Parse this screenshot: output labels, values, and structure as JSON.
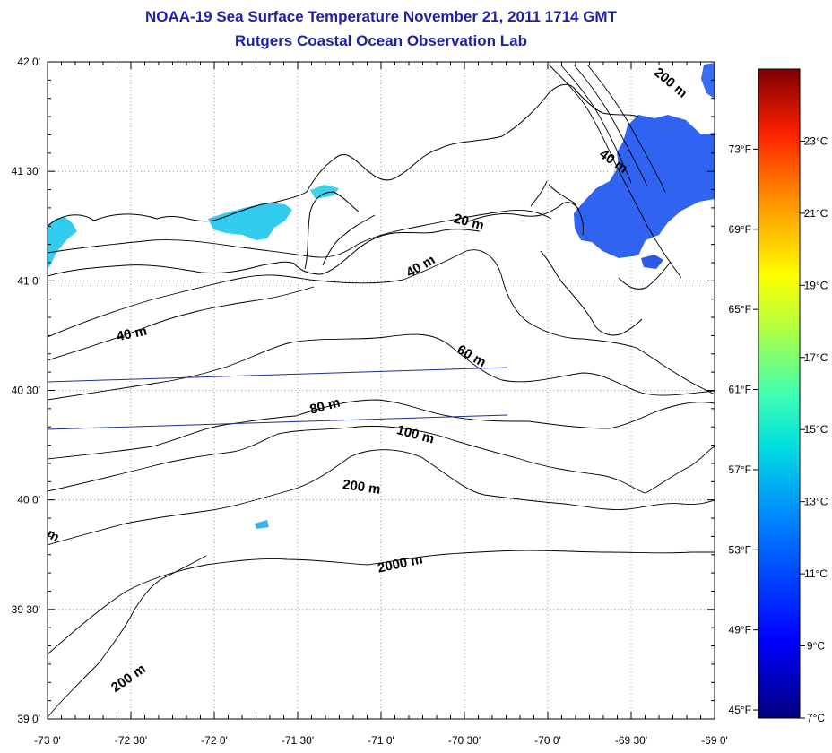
{
  "title": "NOAA-19 Sea Surface Temperature November 21, 2011 1714 GMT",
  "subtitle": "Rutgers Coastal Ocean Observation Lab",
  "map": {
    "lon_range": [
      -73.0,
      -69.0
    ],
    "lat_range": [
      39.0,
      42.0
    ],
    "x_ticks": [
      {
        "value": -73.0,
        "label": "-73 0'"
      },
      {
        "value": -72.5,
        "label": "-72 30'"
      },
      {
        "value": -72.0,
        "label": "-72 0'"
      },
      {
        "value": -71.5,
        "label": "-71 30'"
      },
      {
        "value": -71.0,
        "label": "-71 0'"
      },
      {
        "value": -70.5,
        "label": "-70 30'"
      },
      {
        "value": -70.0,
        "label": "-70 0'"
      },
      {
        "value": -69.5,
        "label": "-69 30'"
      },
      {
        "value": -69.0,
        "label": "-69 0'"
      }
    ],
    "y_ticks": [
      {
        "value": 42.0,
        "label": "42 0'"
      },
      {
        "value": 41.5,
        "label": "41 30'"
      },
      {
        "value": 41.0,
        "label": "41 0'"
      },
      {
        "value": 40.5,
        "label": "40 30'"
      },
      {
        "value": 40.0,
        "label": "40 0'"
      },
      {
        "value": 39.5,
        "label": "39 30'"
      },
      {
        "value": 39.0,
        "label": "39 0'"
      }
    ],
    "grid": true,
    "contour_labels": [
      {
        "text": "200 m",
        "lon": -69.28,
        "lat": 41.89,
        "angle": 40
      },
      {
        "text": "40 m",
        "lon": -69.62,
        "lat": 41.53,
        "angle": 35
      },
      {
        "text": "20 m",
        "lon": -70.48,
        "lat": 41.25,
        "angle": 15
      },
      {
        "text": "40 m",
        "lon": -70.75,
        "lat": 41.05,
        "angle": -30
      },
      {
        "text": "40 m",
        "lon": -72.49,
        "lat": 40.74,
        "angle": -12
      },
      {
        "text": "60 m",
        "lon": -70.47,
        "lat": 40.64,
        "angle": 30
      },
      {
        "text": "80 m",
        "lon": -71.33,
        "lat": 40.41,
        "angle": -15
      },
      {
        "text": "100 m",
        "lon": -70.8,
        "lat": 40.28,
        "angle": 15
      },
      {
        "text": "200 m",
        "lon": -71.12,
        "lat": 40.04,
        "angle": 8
      },
      {
        "text": "2000 m",
        "lon": -70.88,
        "lat": 39.69,
        "angle": -12
      },
      {
        "text": "200 m",
        "lon": -72.5,
        "lat": 39.17,
        "angle": -35
      },
      {
        "text": "m",
        "lon": -72.98,
        "lat": 39.82,
        "angle": 30
      }
    ],
    "colors": {
      "land_outline": "#000000",
      "transect": "#1e2e9a",
      "sst_offshore": "#2f63f0",
      "sst_deep": "#1e46e6",
      "sst_sound": "#32ccee"
    }
  },
  "colorbar": {
    "min_c": 7,
    "max_c": 25,
    "f_labels": [
      "73°F",
      "69°F",
      "65°F",
      "61°F",
      "57°F",
      "53°F",
      "49°F",
      "45°F"
    ],
    "c_labels": [
      "23°C",
      "21°C",
      "19°C",
      "17°C",
      "15°C",
      "13°C",
      "11°C",
      "9°C",
      "7°C"
    ]
  }
}
